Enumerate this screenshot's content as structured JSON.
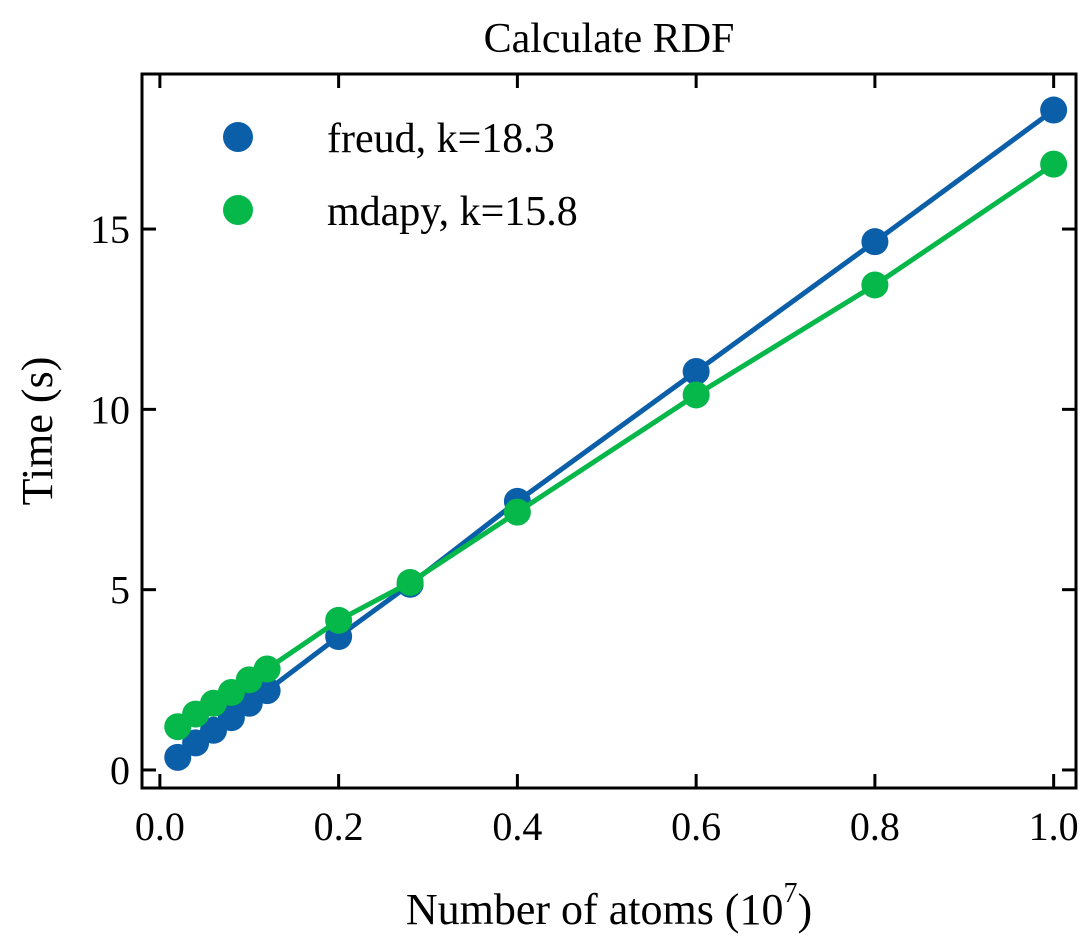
{
  "chart_data": {
    "type": "line",
    "title": "Calculate RDF",
    "xlabel": "Number of atoms (10",
    "xlabel_sup": "7",
    "xlabel_suffix": ")",
    "ylabel": "Time (s)",
    "xlim": [
      -0.02,
      1.025
    ],
    "ylim": [
      -0.5,
      19.3
    ],
    "x_ticks": [
      0.0,
      0.2,
      0.4,
      0.6,
      0.8,
      1.0
    ],
    "x_tick_labels": [
      "0.0",
      "0.2",
      "0.4",
      "0.6",
      "0.8",
      "1.0"
    ],
    "y_ticks": [
      0,
      5,
      10,
      15
    ],
    "y_tick_labels": [
      "0",
      "5",
      "10",
      "15"
    ],
    "grid": false,
    "legend_position": "top-left",
    "series": [
      {
        "name": "freud, k=18.3",
        "color": "#0b5ea8",
        "x": [
          0.02,
          0.04,
          0.06,
          0.08,
          0.1,
          0.12,
          0.2,
          0.28,
          0.4,
          0.6,
          0.8,
          1.0
        ],
        "y": [
          0.35,
          0.75,
          1.1,
          1.45,
          1.85,
          2.2,
          3.7,
          5.15,
          7.45,
          11.05,
          14.65,
          18.3
        ]
      },
      {
        "name": "mdapy, k=15.8",
        "color": "#06b74a",
        "x": [
          0.02,
          0.04,
          0.06,
          0.08,
          0.1,
          0.12,
          0.2,
          0.28,
          0.4,
          0.6,
          0.8,
          1.0
        ],
        "y": [
          1.2,
          1.55,
          1.85,
          2.15,
          2.5,
          2.8,
          4.15,
          5.2,
          7.15,
          10.4,
          13.45,
          16.8
        ]
      }
    ]
  }
}
